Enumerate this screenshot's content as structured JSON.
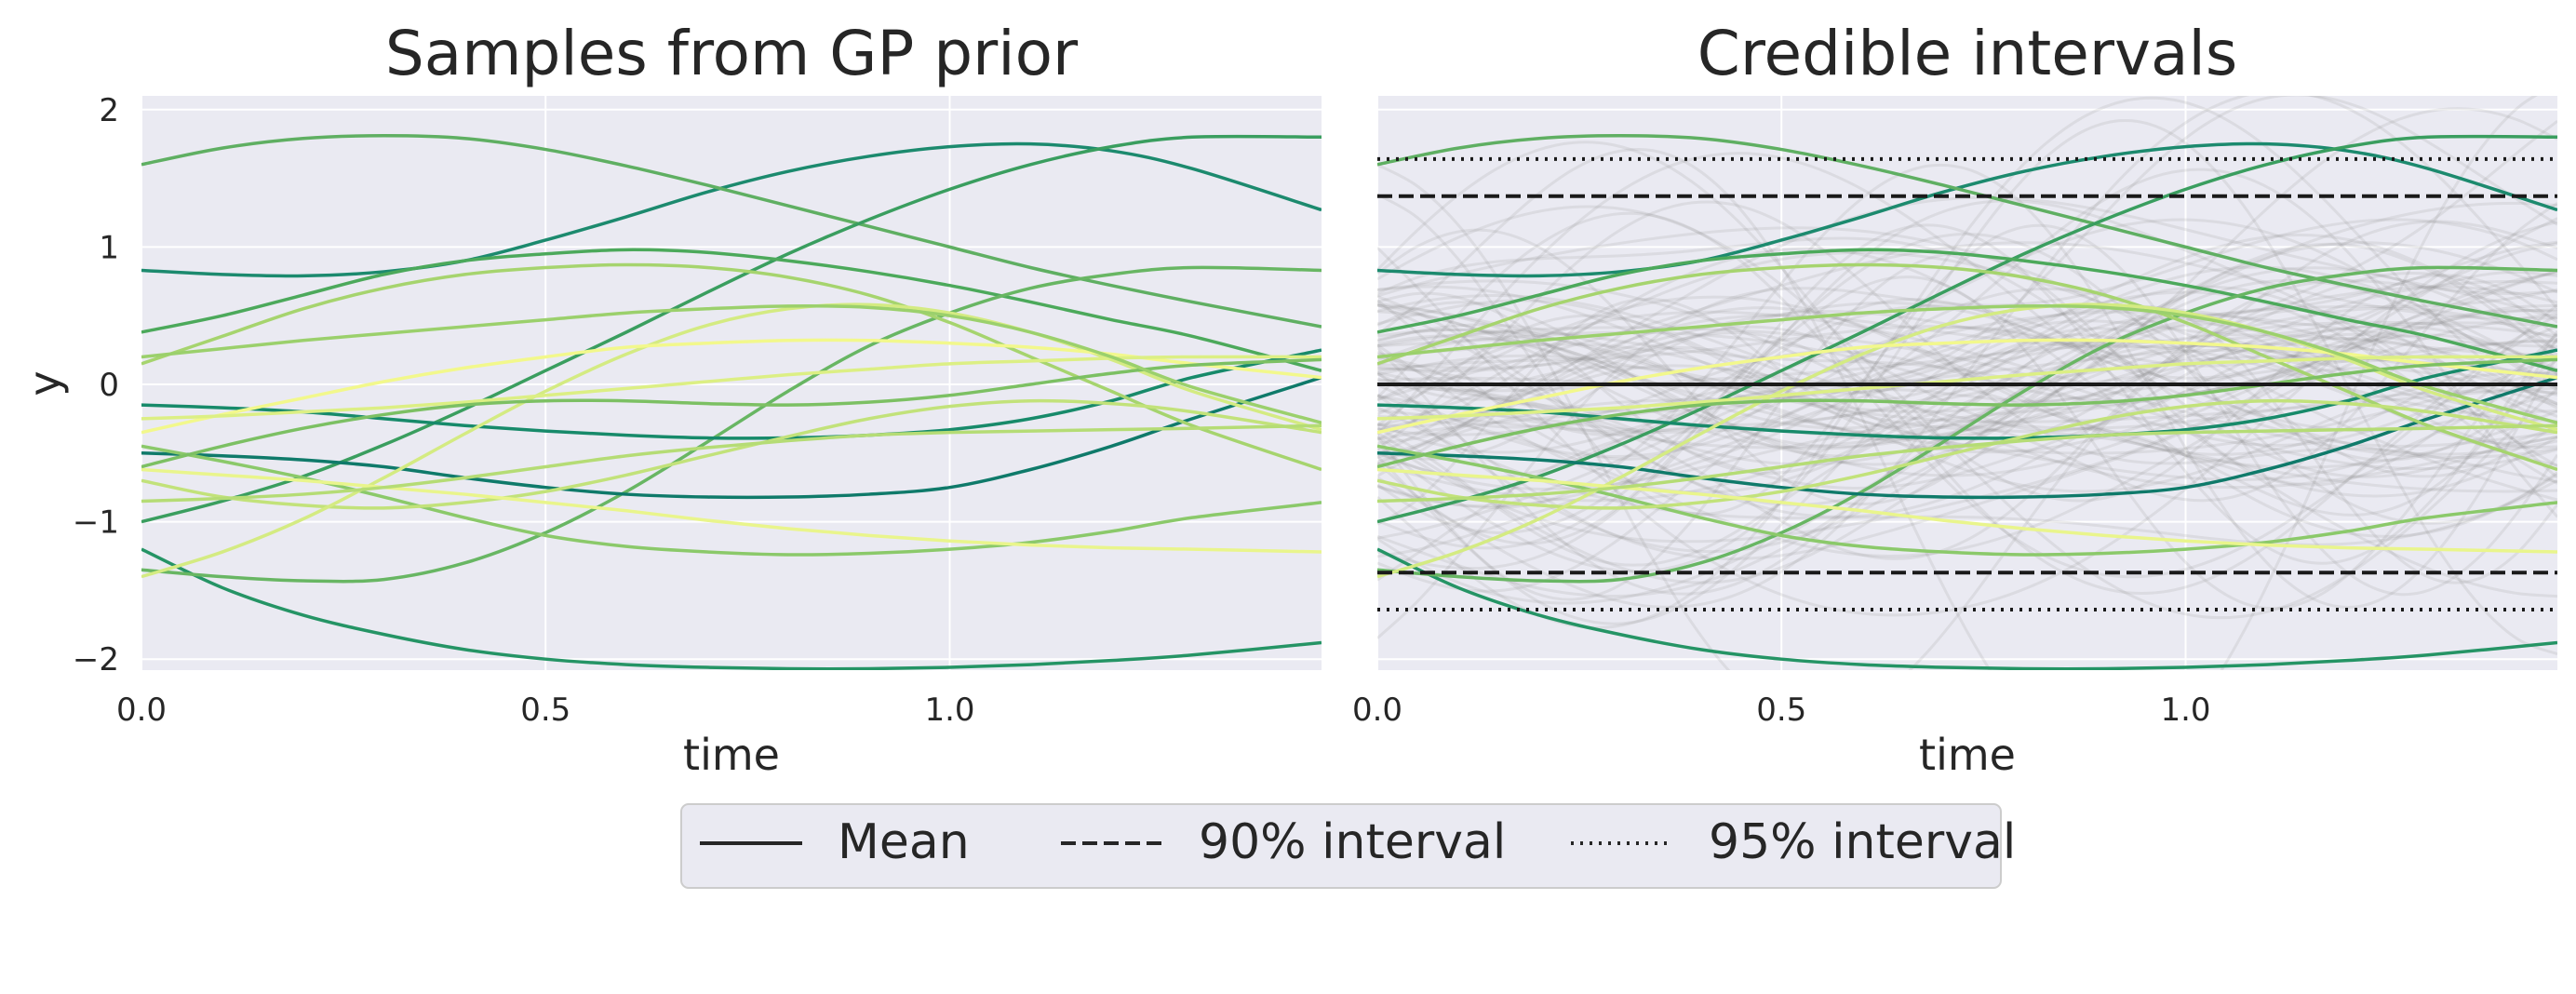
{
  "figure": {
    "legend": {
      "placement": "bottom-center",
      "entries": [
        {
          "label": "Mean",
          "style": "solid"
        },
        {
          "label": "90% interval",
          "style": "dashed"
        },
        {
          "label": "95% interval",
          "style": "dotted"
        }
      ]
    }
  },
  "chart_data": [
    {
      "type": "line",
      "title": "Samples from GP prior",
      "xlabel": "time",
      "ylabel": "y",
      "xlim": [
        0.0,
        1.46
      ],
      "ylim": [
        -2.08,
        2.1
      ],
      "xticks": [
        0.0,
        0.5,
        1.0
      ],
      "xtick_labels": [
        "0.0",
        "0.5",
        "1.0"
      ],
      "yticks": [
        2,
        1,
        0,
        -1,
        -2
      ],
      "ytick_labels": [
        "2",
        "1",
        "0",
        "−1",
        "−2"
      ],
      "grid": true,
      "background": "#eaeaf2",
      "x": [
        0.0,
        0.1,
        0.2,
        0.3,
        0.4,
        0.5,
        0.6,
        0.7,
        0.8,
        0.9,
        1.0,
        1.1,
        1.2,
        1.3,
        1.46
      ],
      "series": [
        {
          "color": "#1c8a6e",
          "values": [
            0.83,
            0.8,
            0.79,
            0.82,
            0.9,
            1.05,
            1.22,
            1.4,
            1.55,
            1.66,
            1.73,
            1.75,
            1.7,
            1.57,
            1.27
          ]
        },
        {
          "color": "#5faf62",
          "values": [
            1.6,
            1.72,
            1.79,
            1.81,
            1.79,
            1.71,
            1.59,
            1.45,
            1.3,
            1.15,
            1.0,
            0.85,
            0.72,
            0.6,
            0.42
          ]
        },
        {
          "color": "#259465",
          "values": [
            -1.2,
            -1.48,
            -1.68,
            -1.82,
            -1.93,
            -2.0,
            -2.04,
            -2.06,
            -2.07,
            -2.07,
            -2.06,
            -2.04,
            -2.01,
            -1.97,
            -1.88
          ]
        },
        {
          "color": "#3a9e5f",
          "values": [
            -1.0,
            -0.85,
            -0.67,
            -0.44,
            -0.18,
            0.1,
            0.38,
            0.67,
            0.95,
            1.2,
            1.42,
            1.6,
            1.73,
            1.8,
            1.8
          ]
        },
        {
          "color": "#4ca95b",
          "values": [
            0.38,
            0.5,
            0.65,
            0.8,
            0.9,
            0.95,
            0.98,
            0.96,
            0.9,
            0.82,
            0.72,
            0.6,
            0.47,
            0.35,
            0.1
          ]
        },
        {
          "color": "#68b663",
          "values": [
            -1.35,
            -1.4,
            -1.43,
            -1.42,
            -1.3,
            -1.08,
            -0.78,
            -0.42,
            -0.05,
            0.28,
            0.52,
            0.7,
            0.8,
            0.85,
            0.83
          ]
        },
        {
          "color": "#0f7a6a",
          "values": [
            -0.5,
            -0.52,
            -0.55,
            -0.6,
            -0.68,
            -0.75,
            -0.8,
            -0.82,
            -0.82,
            -0.8,
            -0.75,
            -0.62,
            -0.45,
            -0.25,
            0.05
          ]
        },
        {
          "color": "#178a6a",
          "values": [
            -0.15,
            -0.17,
            -0.2,
            -0.25,
            -0.3,
            -0.34,
            -0.37,
            -0.39,
            -0.39,
            -0.37,
            -0.33,
            -0.25,
            -0.12,
            0.05,
            0.25
          ]
        },
        {
          "color": "#8bc96a",
          "values": [
            -0.45,
            -0.56,
            -0.68,
            -0.82,
            -0.97,
            -1.1,
            -1.18,
            -1.22,
            -1.24,
            -1.23,
            -1.2,
            -1.15,
            -1.07,
            -0.97,
            -0.86
          ]
        },
        {
          "color": "#a6d46e",
          "values": [
            0.15,
            0.35,
            0.55,
            0.7,
            0.8,
            0.85,
            0.87,
            0.85,
            0.78,
            0.65,
            0.45,
            0.2,
            -0.05,
            -0.3,
            -0.62
          ]
        },
        {
          "color": "#c2e27a",
          "values": [
            -0.7,
            -0.82,
            -0.88,
            -0.9,
            -0.86,
            -0.78,
            -0.66,
            -0.52,
            -0.38,
            -0.25,
            -0.16,
            -0.12,
            -0.14,
            -0.2,
            -0.35
          ]
        },
        {
          "color": "#d4eb82",
          "values": [
            -1.4,
            -1.22,
            -0.98,
            -0.68,
            -0.36,
            -0.05,
            0.22,
            0.43,
            0.55,
            0.58,
            0.52,
            0.38,
            0.18,
            -0.05,
            -0.33
          ]
        },
        {
          "color": "#f2f88c",
          "values": [
            -0.35,
            -0.22,
            -0.1,
            0.02,
            0.12,
            0.2,
            0.27,
            0.3,
            0.32,
            0.32,
            0.3,
            0.27,
            0.22,
            0.15,
            0.05
          ]
        },
        {
          "color": "#e9f58c",
          "values": [
            -0.62,
            -0.66,
            -0.7,
            -0.75,
            -0.8,
            -0.86,
            -0.92,
            -0.99,
            -1.05,
            -1.1,
            -1.14,
            -1.17,
            -1.19,
            -1.2,
            -1.22
          ]
        },
        {
          "color": "#dcef84",
          "values": [
            -0.25,
            -0.23,
            -0.2,
            -0.17,
            -0.13,
            -0.08,
            -0.03,
            0.02,
            0.07,
            0.11,
            0.15,
            0.17,
            0.19,
            0.2,
            0.2
          ]
        },
        {
          "color": "#b5dc75",
          "values": [
            -0.85,
            -0.83,
            -0.8,
            -0.75,
            -0.68,
            -0.6,
            -0.52,
            -0.46,
            -0.41,
            -0.37,
            -0.35,
            -0.34,
            -0.33,
            -0.32,
            -0.3
          ]
        },
        {
          "color": "#7cc063",
          "values": [
            -0.6,
            -0.45,
            -0.32,
            -0.22,
            -0.15,
            -0.12,
            -0.12,
            -0.14,
            -0.15,
            -0.13,
            -0.08,
            0.0,
            0.08,
            0.14,
            0.18
          ]
        },
        {
          "color": "#9bd06c",
          "values": [
            0.2,
            0.26,
            0.32,
            0.37,
            0.42,
            0.47,
            0.52,
            0.55,
            0.57,
            0.56,
            0.5,
            0.38,
            0.2,
            -0.02,
            -0.28
          ]
        }
      ]
    },
    {
      "type": "line",
      "title": "Credible intervals",
      "xlabel": "time",
      "xlim": [
        0.0,
        1.46
      ],
      "ylim": [
        -2.08,
        2.1
      ],
      "xticks": [
        0.0,
        0.5,
        1.0
      ],
      "xtick_labels": [
        "0.0",
        "0.5",
        "1.0"
      ],
      "grid": true,
      "background": "#eaeaf2",
      "background_samples": {
        "count": 100,
        "color": "#808080",
        "opacity": 0.14
      },
      "mean": 0.0,
      "interval_90": [
        -1.37,
        1.37
      ],
      "interval_95": [
        -1.64,
        1.64
      ],
      "overlay": "same colored samples as left panel"
    }
  ]
}
